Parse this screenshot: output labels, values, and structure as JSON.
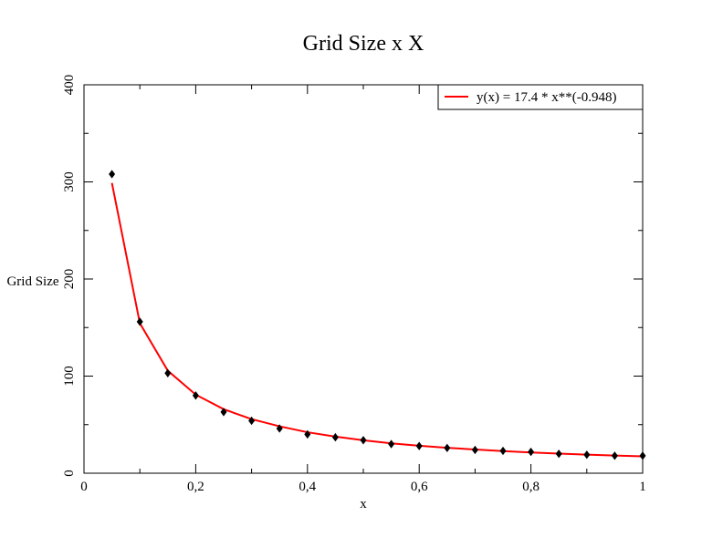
{
  "chart_data": {
    "type": "scatter",
    "title": "Grid Size x X",
    "xlabel": "x",
    "ylabel": "Grid Size",
    "xlim": [
      0,
      1
    ],
    "ylim": [
      0,
      400
    ],
    "x_ticks": [
      0,
      0.2,
      0.4,
      0.6,
      0.8,
      1
    ],
    "x_tick_labels": [
      "0",
      "0,2",
      "0,4",
      "0,6",
      "0,8",
      "1"
    ],
    "y_ticks": [
      0,
      100,
      200,
      300,
      400
    ],
    "y_tick_labels": [
      "0",
      "100",
      "200",
      "300",
      "400"
    ],
    "grid": false,
    "legend_position": "top-right",
    "series": [
      {
        "type": "scatter",
        "color": "#000000",
        "x": [
          0.05,
          0.1,
          0.15,
          0.2,
          0.25,
          0.3,
          0.35,
          0.4,
          0.45,
          0.5,
          0.55,
          0.6,
          0.65,
          0.7,
          0.75,
          0.8,
          0.85,
          0.9,
          0.95,
          1.0
        ],
        "y": [
          308,
          156,
          103,
          80,
          63,
          54,
          46,
          40,
          37,
          34,
          30,
          28,
          26,
          24,
          23,
          22,
          20,
          19,
          18,
          18
        ]
      },
      {
        "type": "line",
        "name": "y(x) = 17.4 * x**(-0.948)",
        "color": "#ff0000",
        "x": [
          0.05,
          0.1,
          0.15,
          0.2,
          0.25,
          0.3,
          0.35,
          0.4,
          0.45,
          0.5,
          0.55,
          0.6,
          0.65,
          0.7,
          0.75,
          0.8,
          0.85,
          0.9,
          0.95,
          1.0
        ],
        "y": [
          298.9,
          154.4,
          105.6,
          80.9,
          65.9,
          55.7,
          48.3,
          42.2,
          37.7,
          33.9,
          30.7,
          28.3,
          26.2,
          24.4,
          22.8,
          21.4,
          20.2,
          19.1,
          18.2,
          17.4
        ]
      }
    ]
  }
}
